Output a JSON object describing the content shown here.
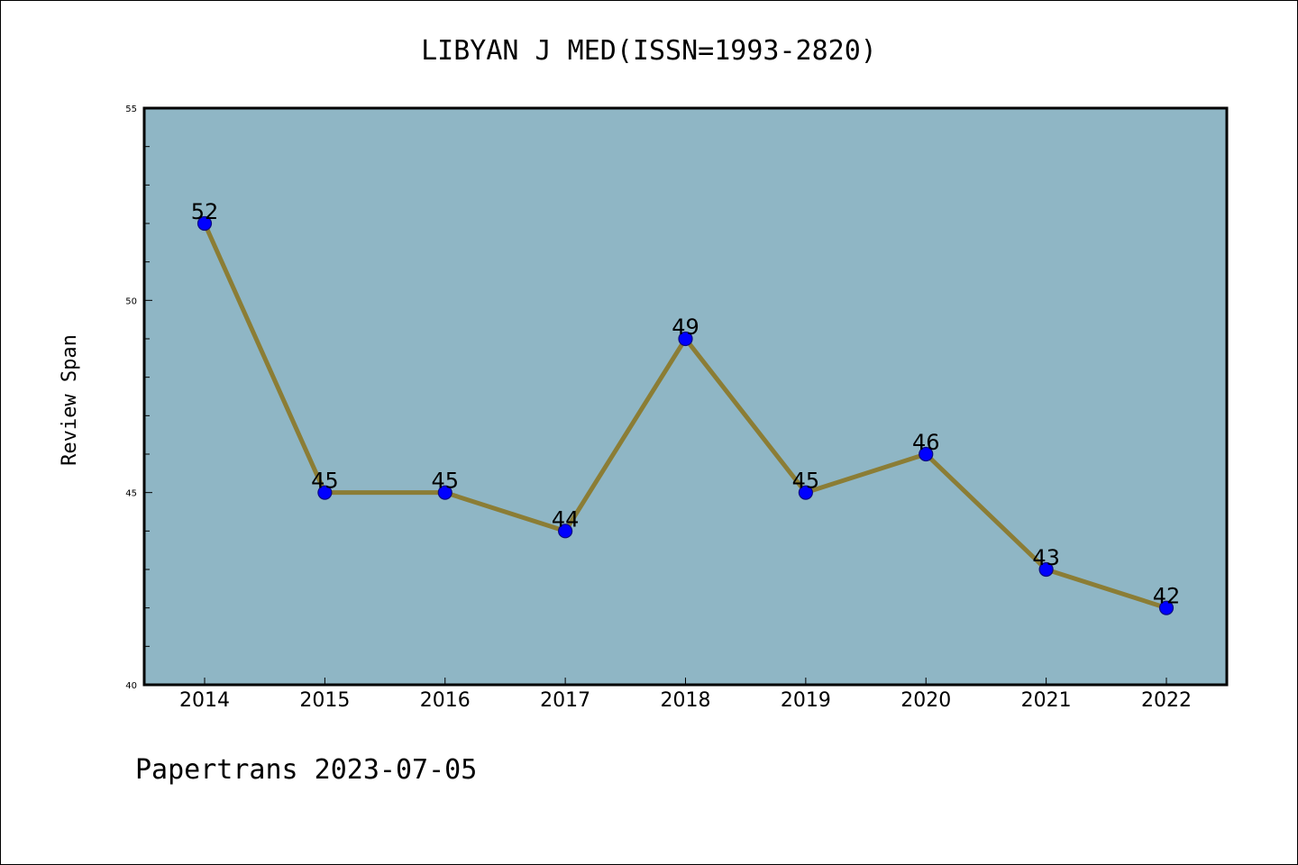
{
  "chart_data": {
    "type": "line",
    "title": "LIBYAN J MED(ISSN=1993-2820)",
    "ylabel": "Review Span",
    "xlabel": "",
    "categories": [
      "2014",
      "2015",
      "2016",
      "2017",
      "2018",
      "2019",
      "2020",
      "2021",
      "2022"
    ],
    "values": [
      52,
      45,
      45,
      44,
      49,
      45,
      46,
      43,
      42
    ],
    "data_labels": [
      "52",
      "45",
      "45",
      "44",
      "49",
      "45",
      "46",
      "43",
      "42"
    ],
    "ylim": [
      40,
      55
    ],
    "yticks": [
      40,
      45,
      50,
      55
    ],
    "ytick_labels": [
      "40",
      "45",
      "50",
      "55"
    ],
    "grid": false,
    "legend": "none",
    "colors": {
      "plot_background": "#8fb6c5",
      "line": "#8b7d35",
      "marker": "#0000ff",
      "marker_edge": "#0a0a80",
      "frame": "#000000"
    }
  },
  "footer": {
    "watermark": "Papertrans 2023-07-05"
  }
}
